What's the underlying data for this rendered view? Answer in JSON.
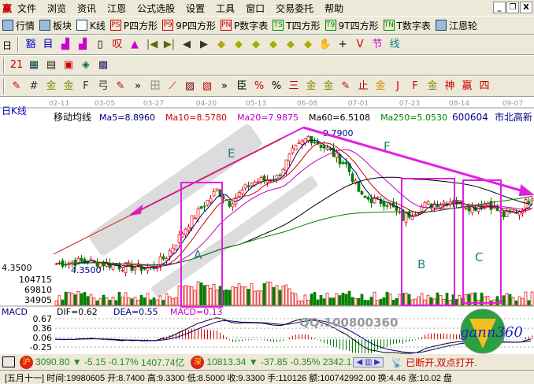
{
  "window": {
    "logo": "赢",
    "menu": [
      "文件",
      "浏览",
      "资讯",
      "江恩",
      "公式选股",
      "设置",
      "工具",
      "窗口",
      "交易委托",
      "帮助"
    ]
  },
  "toolbar1": [
    {
      "label": "行情",
      "icon": "grid-icon"
    },
    {
      "label": "板块",
      "icon": "blocks-icon"
    },
    {
      "label": "K线",
      "icon": "candle-icon"
    },
    {
      "label": "P四方形",
      "icon": "PS"
    },
    {
      "label": "9P四方形",
      "icon": "P9"
    },
    {
      "label": "P数字表",
      "icon": "PN"
    },
    {
      "label": "T四方形",
      "icon": "TS"
    },
    {
      "label": "9T四方形",
      "icon": "T9"
    },
    {
      "label": "T数字表",
      "icon": "TN"
    },
    {
      "label": "江恩轮",
      "icon": "wheel-icon"
    }
  ],
  "toolbar2": {
    "period": "日",
    "icons": [
      "豁",
      "目",
      "▟",
      "▟",
      "▯",
      "叹",
      "▲",
      "|◀",
      "▶|",
      "◀",
      "▶",
      "◆",
      "◆",
      "◆",
      "◆",
      "◆",
      "◆",
      "✋",
      "+",
      "V",
      "节",
      "线"
    ]
  },
  "toolbar3": {
    "icons": [
      "21",
      "▦",
      "▤",
      "▣",
      "◈",
      "▩"
    ]
  },
  "toolbar4": {
    "icons": [
      "✎",
      "#",
      "金",
      "金",
      "F",
      "弓",
      "✎",
      "»",
      "田",
      "⟋",
      "▨",
      "▧",
      "»",
      "臣",
      "%",
      "%",
      "三",
      "金",
      "金",
      "✎",
      "止",
      "金",
      "J",
      "F",
      "金",
      "神",
      "赢",
      "四"
    ]
  },
  "chart": {
    "period_label": "日K线",
    "dates": [
      "02-11",
      "03-05",
      "03-27",
      "04-20",
      "05-13",
      "06-08",
      "07-01",
      "07-23",
      "08-14",
      "09-07"
    ],
    "ma_title": "移动均线",
    "ma": [
      {
        "label": "Ma5=8.8960",
        "color": "#000080"
      },
      {
        "label": "Ma10=8.5780",
        "color": "#d00000"
      },
      {
        "label": "Ma20=7.9875",
        "color": "#c000c0"
      },
      {
        "label": "Ma60=6.5108",
        "color": "#000000"
      },
      {
        "label": "Ma250=5.0530",
        "color": "#008000"
      }
    ],
    "stock_code": "600604",
    "stock_name": "市北高新",
    "high_label": "9.7900",
    "low_label": "4.3500",
    "low_label2": "4.3500",
    "volume_ticks": [
      "104715",
      "69810",
      "34905"
    ],
    "macd": {
      "title": "MACD",
      "dif": "DIF=0.62",
      "dea": "DEA=0.55",
      "macd": "MACD=0.13",
      "ticks": [
        "0.67",
        "0.36",
        "0.06",
        "-0.25"
      ]
    },
    "annotations": {
      "letters": [
        "A",
        "B",
        "C",
        "E",
        "F"
      ]
    },
    "watermark": "QQ:100800360",
    "logo_text": "gann360"
  },
  "chart_data": {
    "type": "candlestick",
    "price_range": [
      4.35,
      9.79
    ],
    "price_keypoints": [
      [
        0,
        4.6
      ],
      [
        10,
        4.7
      ],
      [
        20,
        4.5
      ],
      [
        30,
        4.4
      ],
      [
        35,
        4.9
      ],
      [
        42,
        6.2
      ],
      [
        51,
        7.5
      ],
      [
        55,
        7.0
      ],
      [
        62,
        7.8
      ],
      [
        70,
        8.0
      ],
      [
        75,
        9.0
      ],
      [
        80,
        9.6
      ],
      [
        85,
        9.2
      ],
      [
        92,
        8.5
      ],
      [
        97,
        7.2
      ],
      [
        105,
        7.0
      ],
      [
        110,
        6.4
      ],
      [
        117,
        6.9
      ],
      [
        126,
        7.1
      ],
      [
        132,
        6.8
      ],
      [
        137,
        7.0
      ],
      [
        142,
        6.5
      ],
      [
        147,
        6.7
      ],
      [
        151,
        7.3
      ]
    ]
  },
  "status": {
    "sh_label": "沪",
    "sh_index": "3090.80",
    "sh_change": "-5.15",
    "sh_pct": "-0.17%",
    "sh_amount": "1407.74亿",
    "sz_label": "深",
    "sz_index": "10813.34",
    "sz_change": "-37.85",
    "sz_pct": "-0.35%",
    "sz_amount": "2342.1",
    "conn": "已断开,双点打开."
  },
  "info": "[五月十一] 时间:19980605 开:8.7400 高:9.3300 低:8.5000 收:9.3300 手:110126 额:100742992.00 换:4.46 涨:10.02 盘",
  "colors": {
    "up": "#e00000",
    "down": "#008000",
    "annot": "#e020e0"
  }
}
